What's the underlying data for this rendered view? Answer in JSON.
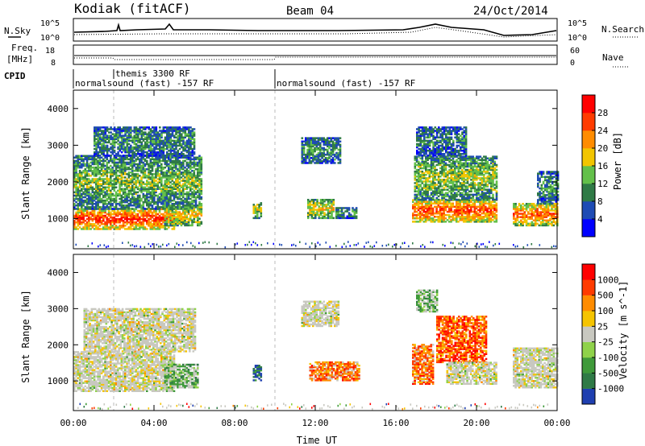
{
  "header": {
    "station": "Kodiak (fitACF)",
    "beam": "Beam 04",
    "date": "24/Oct/2014"
  },
  "top_panels": {
    "nsky_label": "N.Sky",
    "nsky_left_ticks": [
      "10^5",
      "10^0"
    ],
    "nsky_right_ticks": [
      "10^5",
      "10^0"
    ],
    "nsearch_label": "N.Search",
    "freq_label": "Freq.",
    "freq_unit": "[MHz]",
    "freq_ticks": [
      "18",
      "8"
    ],
    "nave_ticks": [
      "60",
      "0"
    ],
    "nave_label": "Nave",
    "cpid_label": "CPID",
    "cpid_segments": [
      {
        "text": "themis 3300 RF",
        "start_hour": 2.0
      },
      {
        "text": "normalsound (fast) -157 RF",
        "start_hour": 0.0
      },
      {
        "text": "normalsound (fast) -157 RF",
        "start_hour": 10.0
      }
    ]
  },
  "chart_data": [
    {
      "type": "heatmap",
      "title": "Power",
      "xlabel": "Time UT",
      "ylabel": "Slant Range [km]",
      "xlim_hours": [
        0,
        24
      ],
      "ylim": [
        180,
        4500
      ],
      "x_tick_labels": [
        "00:00",
        "04:00",
        "08:00",
        "12:00",
        "16:00",
        "20:00",
        "00:00"
      ],
      "x_tick_hours": [
        0,
        4,
        8,
        12,
        16,
        20,
        24
      ],
      "y_tick_values": [
        1000,
        2000,
        3000,
        4000
      ],
      "y_tick_labels": [
        "1000",
        "2000",
        "3000",
        "4000"
      ],
      "colorbar": {
        "label": "Power [dB]",
        "min": 0,
        "max": 32,
        "ticks": [
          "28",
          "24",
          "20",
          "16",
          "12",
          "8",
          "4"
        ],
        "colors": [
          "#0000ff",
          "#1e4bb4",
          "#2f7a46",
          "#63c04a",
          "#f2c500",
          "#ff8c00",
          "#ff3b00",
          "#ff0000"
        ]
      },
      "regions": [
        {
          "t0": 0.0,
          "t1": 5.0,
          "r0": 700,
          "r1": 1250,
          "level": 0.9
        },
        {
          "t0": 0.0,
          "t1": 6.3,
          "r0": 1250,
          "r1": 2700,
          "level": 0.45
        },
        {
          "t0": 1.0,
          "t1": 6.0,
          "r0": 2700,
          "r1": 3500,
          "level": 0.35
        },
        {
          "t0": 4.5,
          "t1": 6.3,
          "r0": 800,
          "r1": 1350,
          "level": 0.6
        },
        {
          "t0": 8.9,
          "t1": 9.3,
          "r0": 1000,
          "r1": 1450,
          "level": 0.55
        },
        {
          "t0": 11.3,
          "t1": 13.2,
          "r0": 2500,
          "r1": 3200,
          "level": 0.35
        },
        {
          "t0": 11.6,
          "t1": 12.9,
          "r0": 1000,
          "r1": 1500,
          "level": 0.6
        },
        {
          "t0": 13.0,
          "t1": 14.0,
          "r0": 1000,
          "r1": 1300,
          "level": 0.35
        },
        {
          "t0": 16.8,
          "t1": 21.0,
          "r0": 900,
          "r1": 1500,
          "level": 0.85
        },
        {
          "t0": 16.9,
          "t1": 21.0,
          "r0": 1500,
          "r1": 2700,
          "level": 0.5
        },
        {
          "t0": 17.0,
          "t1": 19.5,
          "r0": 2700,
          "r1": 3500,
          "level": 0.3
        },
        {
          "t0": 21.8,
          "t1": 24.0,
          "r0": 800,
          "r1": 1400,
          "level": 0.8
        },
        {
          "t0": 23.0,
          "t1": 24.0,
          "r0": 1400,
          "r1": 2300,
          "level": 0.35
        }
      ]
    },
    {
      "type": "heatmap",
      "title": "Velocity",
      "xlabel": "Time UT",
      "ylabel": "Slant Range [km]",
      "xlim_hours": [
        0,
        24
      ],
      "ylim": [
        180,
        4500
      ],
      "x_tick_labels": [
        "00:00",
        "04:00",
        "08:00",
        "12:00",
        "16:00",
        "20:00",
        "00:00"
      ],
      "x_tick_hours": [
        0,
        4,
        8,
        12,
        16,
        20,
        24
      ],
      "y_tick_values": [
        1000,
        2000,
        3000,
        4000
      ],
      "y_tick_labels": [
        "1000",
        "2000",
        "3000",
        "4000"
      ],
      "colorbar": {
        "label": "Velocity [m s^-1]",
        "ticks": [
          "1000",
          "500",
          "100",
          "25",
          "-25",
          "-100",
          "-500",
          "-1000"
        ],
        "colors": [
          "#1f3fb0",
          "#2f7a46",
          "#3f9a3a",
          "#8fd24a",
          "#c8c8c0",
          "#f5c400",
          "#ff8c00",
          "#ff3b00",
          "#ff0000"
        ]
      },
      "regions": [
        {
          "t0": 0.0,
          "t1": 5.0,
          "r0": 700,
          "r1": 1800,
          "level": 0.5
        },
        {
          "t0": 0.5,
          "t1": 6.0,
          "r0": 1800,
          "r1": 3000,
          "level": 0.5
        },
        {
          "t0": 4.5,
          "t1": 6.2,
          "r0": 800,
          "r1": 1450,
          "level": 0.35
        },
        {
          "t0": 8.9,
          "t1": 9.3,
          "r0": 1000,
          "r1": 1450,
          "level": 0.1
        },
        {
          "t0": 11.3,
          "t1": 13.1,
          "r0": 2500,
          "r1": 3200,
          "level": 0.5
        },
        {
          "t0": 11.7,
          "t1": 14.2,
          "r0": 1000,
          "r1": 1500,
          "level": 0.75
        },
        {
          "t0": 16.8,
          "t1": 17.8,
          "r0": 900,
          "r1": 2000,
          "level": 0.75
        },
        {
          "t0": 18.0,
          "t1": 20.5,
          "r0": 1500,
          "r1": 2800,
          "level": 0.8
        },
        {
          "t0": 18.5,
          "t1": 21.0,
          "r0": 900,
          "r1": 1500,
          "level": 0.5
        },
        {
          "t0": 21.8,
          "t1": 24.0,
          "r0": 800,
          "r1": 1900,
          "level": 0.5
        },
        {
          "t0": 17.0,
          "t1": 18.0,
          "r0": 2900,
          "r1": 3500,
          "level": 0.35
        }
      ]
    }
  ],
  "colors": {
    "dashed_marker": "#bbbbbb",
    "ground_scatter_gray": "#c8c8c0"
  }
}
